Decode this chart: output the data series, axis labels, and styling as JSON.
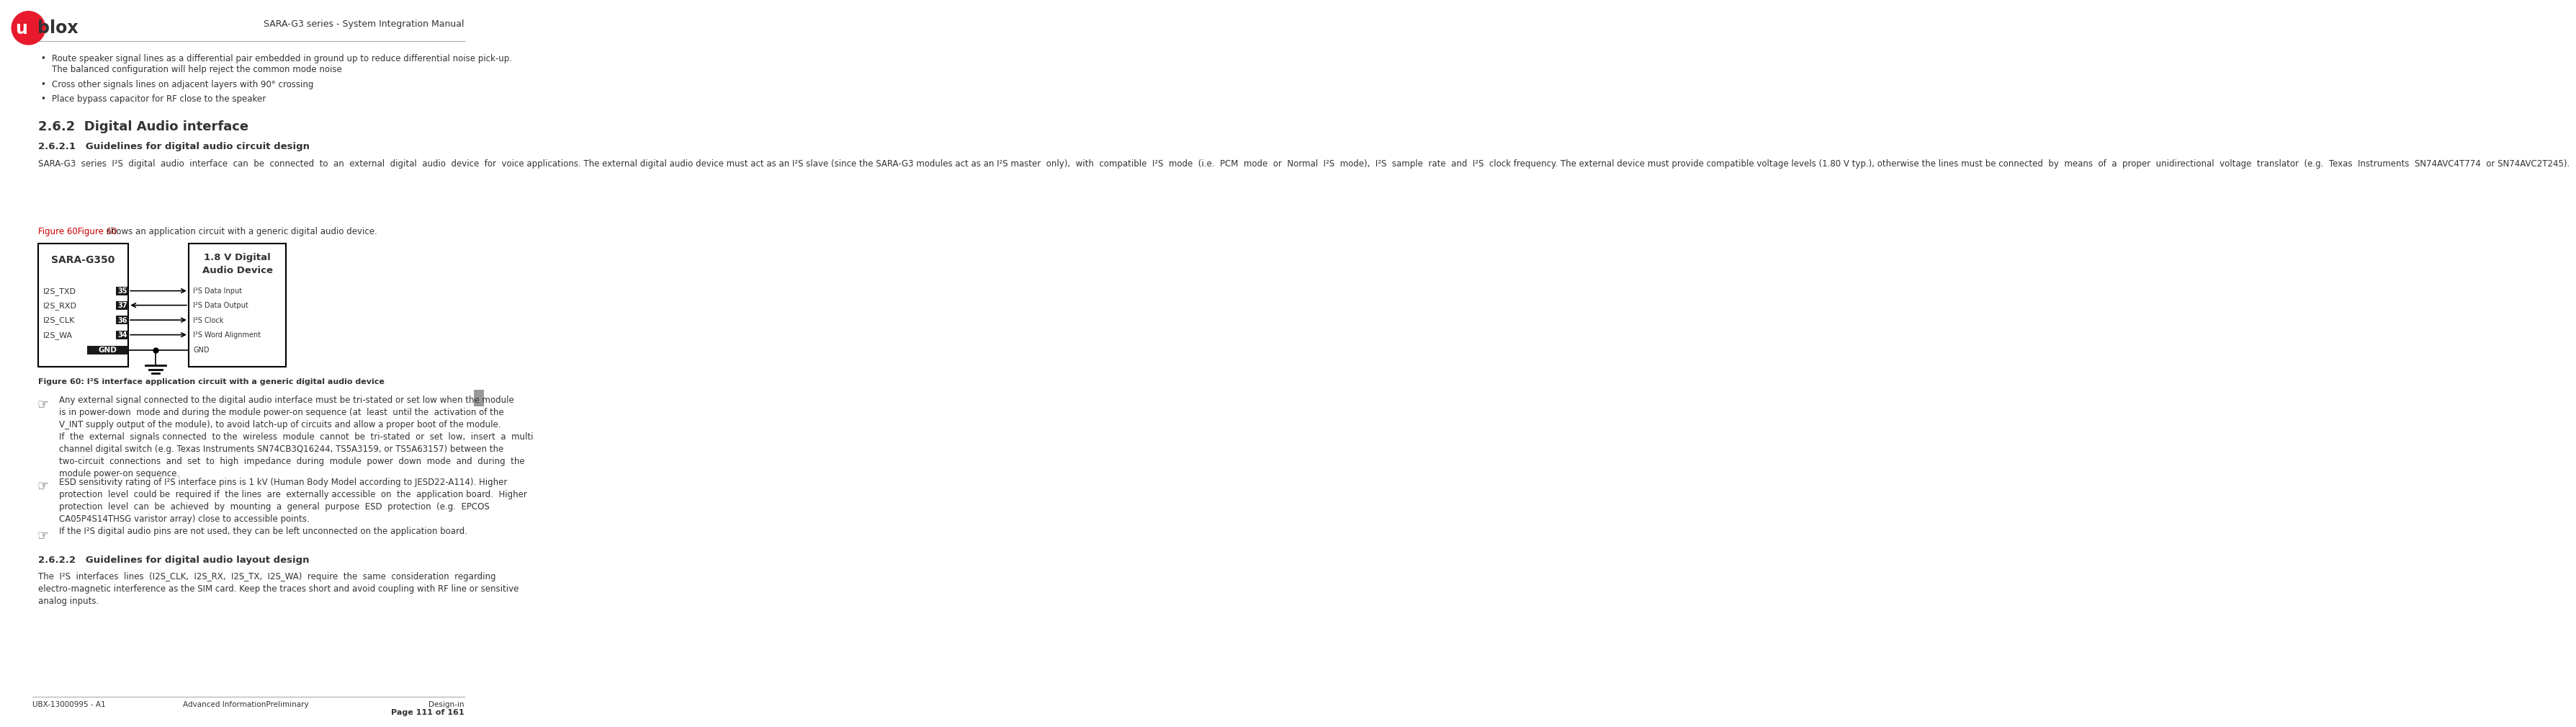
{
  "page_width": 8.54,
  "page_height": 12.85,
  "bg_color": "#ffffff",
  "header_title": "SARA-G3 series - System Integration Manual",
  "logo_circle_color": "#e8192c",
  "footer_left": "UBX-13000995 - A1",
  "footer_center": "Advanced InformationPreliminary",
  "footer_right": "Design-in",
  "footer_page": "Page 111 of 161",
  "section_262": "2.6.2  Digital Audio interface",
  "section_2621": "2.6.2.1   Guidelines for digital audio circuit design",
  "section_2622": "2.6.2.2   Guidelines for digital audio layout design",
  "bullet1": "Route speaker signal lines as a differential pair embedded in ground up to reduce differential noise pick-up.\nThe balanced configuration will help reject the common mode noise",
  "bullet2": "Cross other signals lines on adjacent layers with 90° crossing",
  "bullet3": "Place bypass capacitor for RF close to the speaker",
  "para_2621": "SARA-G3  series  I²S  digital  audio  interface  can  be  connected  to  an  external  digital  audio  device  for  voice applications. The external digital audio device must act as an I²S slave (since the SARA-G3 modules act as an I²S master  only),  with  compatible  I²S  mode  (i.e.  PCM  mode  or  Normal  I²S  mode),  I²S  sample  rate  and  I²S  clock frequency. The external device must provide compatible voltage levels (1.80 V typ.), otherwise the lines must be connected  by  means  of  a  proper  unidirectional  voltage  translator  (e.g.  Texas  Instruments  SN74AVC4T774  or SN74AVC2T245).",
  "fig_ref_red": "Figure 60Figure 60",
  "fig_ref_black": " shows an application circuit with a generic digital audio device.",
  "fig_caption": "Figure 60: I²S interface application circuit with a generic digital audio device",
  "sara_box_label": "SARA-G350",
  "audio_box_label": "1.8 V Digital\nAudio Device",
  "signals": [
    {
      "name": "I2S_TXD",
      "pin": "35",
      "label": "I²S Data Input",
      "direction": "right"
    },
    {
      "name": "I2S_RXD",
      "pin": "37",
      "label": "I²S Data Output",
      "direction": "left"
    },
    {
      "name": "I2S_CLK",
      "pin": "36",
      "label": "I²S Clock",
      "direction": "right"
    },
    {
      "name": "I2S_WA",
      "pin": "34",
      "label": "I²S Word Alignment",
      "direction": "right"
    }
  ],
  "note1": "Any external signal connected to the digital audio interface must be tri-stated or set low when the module\nis in power-down  mode and during the module power-on sequence (at  least  until the  activation of the\nV_INT supply output of the module), to avoid latch-up of circuits and allow a proper boot of the module.\nIf  the  external  signals connected  to the  wireless  module  cannot  be  tri-stated  or  set  low,  insert  a  multi\nchannel digital switch (e.g. Texas Instruments SN74CB3Q16244, TS5A3159, or TS5A63157) between the\ntwo-circuit  connections  and  set  to  high  impedance  during  module  power  down  mode  and  during  the\nmodule power-on sequence.",
  "note2": "ESD sensitivity rating of I²S interface pins is 1 kV (Human Body Model according to JESD22-A114). Higher\nprotection  level  could be  required if  the lines  are  externally accessible  on  the  application board.  Higher\nprotection  level  can  be  achieved  by  mounting  a  general  purpose  ESD  protection  (e.g.  EPCOS\nCA05P4S14THSG varistor array) close to accessible points.",
  "note3": "If the I²S digital audio pins are not used, they can be left unconnected on the application board.",
  "para_2622": "The  I²S  interfaces  lines  (I2S_CLK,  I2S_RX,  I2S_TX,  I2S_WA)  require  the  same  consideration  regarding\nelectro-magnetic interference as the SIM card. Keep the traces short and avoid coupling with RF line or sensitive\nanalog inputs.",
  "text_color": "#333333",
  "red_color": "#cc0000",
  "pin_box_color": "#1a1a1a",
  "pin_text_color": "#ffffff"
}
